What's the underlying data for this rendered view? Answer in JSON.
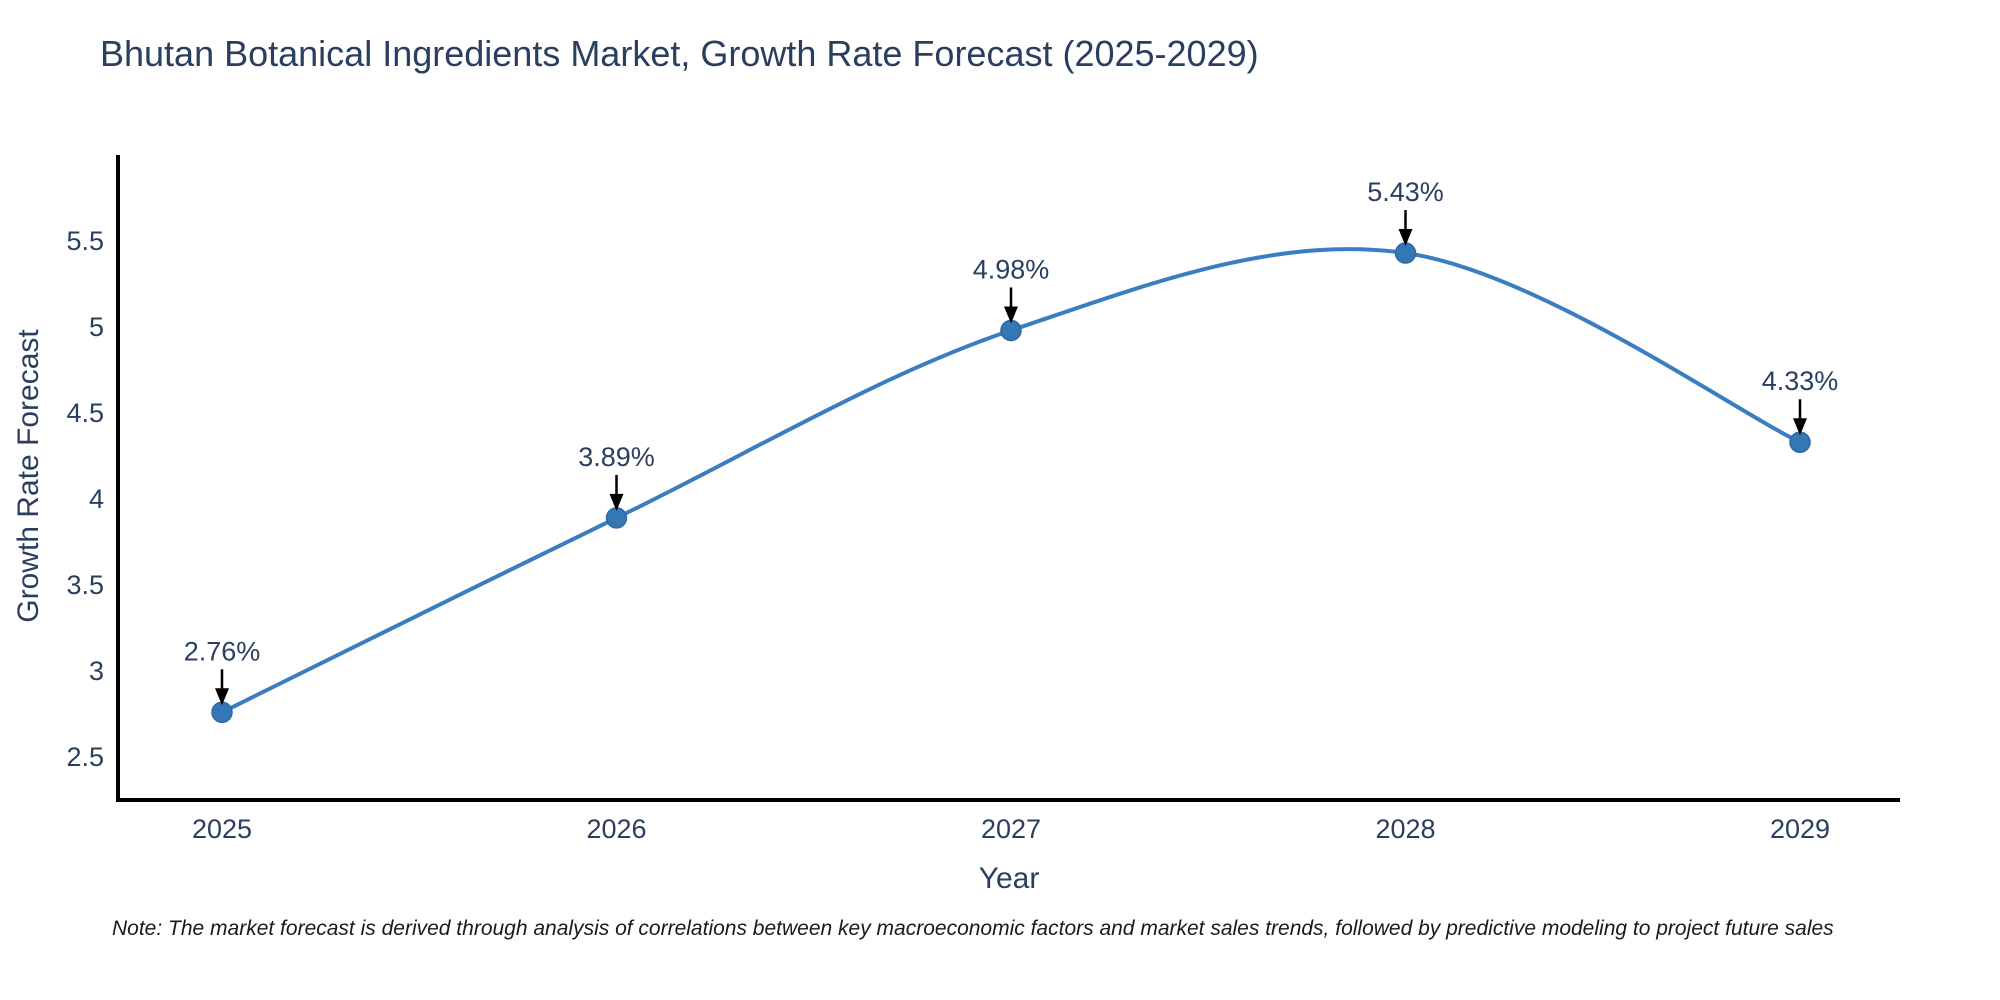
{
  "title": "Bhutan Botanical Ingredients Market, Growth Rate Forecast (2025-2029)",
  "note": "Note: The market forecast is derived through analysis of correlations between key macroeconomic factors and market sales trends, followed by predictive modeling to project future sales",
  "colors": {
    "line": "#3a7ec1",
    "marker": "#3576b5",
    "marker_edge": "#2d68a6",
    "axis_line": "#000000",
    "text": "#2a3f5f",
    "annotation_arrow": "#000000",
    "note_text": "#1a1a1a",
    "background": "#ffffff"
  },
  "chart_data": {
    "type": "line",
    "title": "Bhutan Botanical Ingredients Market, Growth Rate Forecast (2025-2029)",
    "categories": [
      "2025",
      "2026",
      "2027",
      "2028",
      "2029"
    ],
    "values": [
      2.76,
      3.89,
      4.98,
      5.43,
      4.33
    ],
    "point_labels": [
      "2.76%",
      "3.89%",
      "4.98%",
      "5.43%",
      "4.33%"
    ],
    "xlabel": "Year",
    "ylabel": "Growth Rate Forecast",
    "yticks": [
      2.5,
      3,
      3.5,
      4,
      4.5,
      5,
      5.5
    ],
    "ylim": [
      2.25,
      6.0
    ],
    "line_shape": "spline",
    "markers": true,
    "grid": false,
    "legend": "none",
    "annotations": "arrow-down-to-point"
  }
}
